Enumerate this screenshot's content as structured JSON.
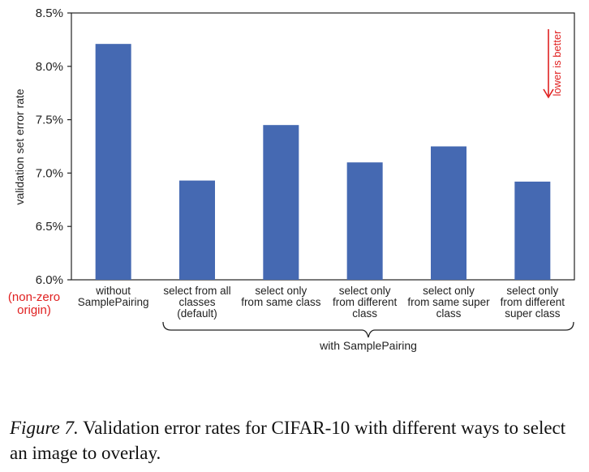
{
  "chart_data": {
    "type": "bar",
    "ylabel": "validation set error rate",
    "ylim": [
      6.0,
      8.5
    ],
    "yticks": [
      {
        "value": 6.0,
        "label": "6.0%"
      },
      {
        "value": 6.5,
        "label": "6.5%"
      },
      {
        "value": 7.0,
        "label": "7.0%"
      },
      {
        "value": 7.5,
        "label": "7.5%"
      },
      {
        "value": 8.0,
        "label": "8.0%"
      },
      {
        "value": 8.5,
        "label": "8.5%"
      }
    ],
    "origin_note": [
      "(non-zero",
      "origin)"
    ],
    "categories": [
      [
        "without",
        "SamplePairing"
      ],
      [
        "select from all",
        "classes",
        "(default)"
      ],
      [
        "select only",
        "from same class"
      ],
      [
        "select only",
        "from different",
        "class"
      ],
      [
        "select only",
        "from same super",
        "class"
      ],
      [
        "select only",
        "from different",
        "super class"
      ]
    ],
    "values": [
      8.21,
      6.93,
      7.45,
      7.1,
      7.25,
      6.92
    ],
    "bar_color": "#4569B2",
    "annotation": "lower is better",
    "annotation_color": "#E02020",
    "group_label": "with SamplePairing",
    "grid": false
  },
  "caption": {
    "figure_label": "Figure 7.",
    "text": " Validation error rates for CIFAR-10 with different ways to select an image to overlay."
  }
}
